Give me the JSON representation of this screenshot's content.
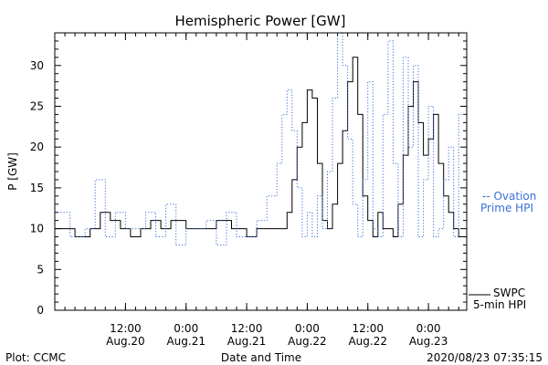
{
  "chart_data": {
    "type": "line",
    "title": "Hemispheric Power [GW]",
    "xlabel": "Date and Time",
    "ylabel": "P [GW]",
    "ylim": [
      0,
      34
    ],
    "yticks": [
      0,
      5,
      10,
      15,
      20,
      25,
      30
    ],
    "xlim": [
      "2020-08-19T22:00",
      "2020-08-23T07:35"
    ],
    "xticks": [
      {
        "t": "2020-08-20T12:00",
        "time": "12:00",
        "date": "Aug.20"
      },
      {
        "t": "2020-08-21T00:00",
        "time": "0:00",
        "date": "Aug.21"
      },
      {
        "t": "2020-08-21T12:00",
        "time": "12:00",
        "date": "Aug.21"
      },
      {
        "t": "2020-08-22T00:00",
        "time": "0:00",
        "date": "Aug.22"
      },
      {
        "t": "2020-08-22T12:00",
        "time": "12:00",
        "date": "Aug.22"
      },
      {
        "t": "2020-08-23T00:00",
        "time": "0:00",
        "date": "Aug.23"
      }
    ],
    "legend": {
      "ovation": [
        "-- Ovation",
        "Prime HPI"
      ],
      "swpc": [
        "SWPC",
        "5-min HPI"
      ]
    },
    "footer": {
      "left": "Plot: CCMC",
      "right": "2020/08/23 07:35:15"
    },
    "colors": {
      "swpc": "#000000",
      "ovation": "#3a6fd8"
    },
    "series": [
      {
        "name": "SWPC 5-min HPI",
        "x": [
          "2020-08-19T22:00",
          "2020-08-20T02:00",
          "2020-08-20T05:00",
          "2020-08-20T07:00",
          "2020-08-20T09:00",
          "2020-08-20T11:00",
          "2020-08-20T13:00",
          "2020-08-20T15:00",
          "2020-08-20T17:00",
          "2020-08-20T19:00",
          "2020-08-20T21:00",
          "2020-08-21T00:00",
          "2020-08-21T03:00",
          "2020-08-21T06:00",
          "2020-08-21T09:00",
          "2020-08-21T12:00",
          "2020-08-21T14:00",
          "2020-08-21T16:00",
          "2020-08-21T18:00",
          "2020-08-21T19:00",
          "2020-08-21T20:00",
          "2020-08-21T21:00",
          "2020-08-21T22:00",
          "2020-08-21T23:00",
          "2020-08-22T00:00",
          "2020-08-22T01:00",
          "2020-08-22T02:00",
          "2020-08-22T03:00",
          "2020-08-22T04:00",
          "2020-08-22T05:00",
          "2020-08-22T06:00",
          "2020-08-22T07:00",
          "2020-08-22T08:00",
          "2020-08-22T09:00",
          "2020-08-22T10:00",
          "2020-08-22T11:00",
          "2020-08-22T12:00",
          "2020-08-22T13:00",
          "2020-08-22T14:00",
          "2020-08-22T15:00",
          "2020-08-22T16:00",
          "2020-08-22T17:00",
          "2020-08-22T18:00",
          "2020-08-22T19:00",
          "2020-08-22T20:00",
          "2020-08-22T21:00",
          "2020-08-22T22:00",
          "2020-08-22T23:00",
          "2020-08-23T00:00",
          "2020-08-23T01:00",
          "2020-08-23T02:00",
          "2020-08-23T03:00",
          "2020-08-23T04:00",
          "2020-08-23T05:00",
          "2020-08-23T06:00",
          "2020-08-23T07:35"
        ],
        "values": [
          10,
          9,
          10,
          12,
          11,
          10,
          9,
          10,
          11,
          10,
          11,
          10,
          10,
          11,
          10,
          9,
          10,
          10,
          10,
          10,
          12,
          16,
          20,
          23,
          27,
          26,
          18,
          11,
          10,
          13,
          18,
          22,
          28,
          31,
          24,
          14,
          11,
          9,
          12,
          10,
          10,
          9,
          13,
          19,
          25,
          28,
          23,
          19,
          21,
          24,
          18,
          14,
          12,
          10,
          9,
          9
        ]
      },
      {
        "name": "Ovation Prime HPI",
        "x": [
          "2020-08-19T22:00",
          "2020-08-20T01:00",
          "2020-08-20T04:00",
          "2020-08-20T06:00",
          "2020-08-20T08:00",
          "2020-08-20T10:00",
          "2020-08-20T12:00",
          "2020-08-20T14:00",
          "2020-08-20T16:00",
          "2020-08-20T18:00",
          "2020-08-20T20:00",
          "2020-08-20T22:00",
          "2020-08-21T00:00",
          "2020-08-21T02:00",
          "2020-08-21T04:00",
          "2020-08-21T06:00",
          "2020-08-21T08:00",
          "2020-08-21T10:00",
          "2020-08-21T12:00",
          "2020-08-21T14:00",
          "2020-08-21T16:00",
          "2020-08-21T18:00",
          "2020-08-21T19:00",
          "2020-08-21T20:00",
          "2020-08-21T21:00",
          "2020-08-21T22:00",
          "2020-08-21T23:00",
          "2020-08-22T00:00",
          "2020-08-22T01:00",
          "2020-08-22T02:00",
          "2020-08-22T03:00",
          "2020-08-22T04:00",
          "2020-08-22T05:00",
          "2020-08-22T06:00",
          "2020-08-22T07:00",
          "2020-08-22T08:00",
          "2020-08-22T09:00",
          "2020-08-22T10:00",
          "2020-08-22T11:00",
          "2020-08-22T12:00",
          "2020-08-22T13:00",
          "2020-08-22T14:00",
          "2020-08-22T15:00",
          "2020-08-22T16:00",
          "2020-08-22T17:00",
          "2020-08-22T18:00",
          "2020-08-22T19:00",
          "2020-08-22T20:00",
          "2020-08-22T21:00",
          "2020-08-22T22:00",
          "2020-08-22T23:00",
          "2020-08-23T00:00",
          "2020-08-23T01:00",
          "2020-08-23T02:00",
          "2020-08-23T03:00",
          "2020-08-23T04:00",
          "2020-08-23T05:00",
          "2020-08-23T06:00",
          "2020-08-23T07:35"
        ],
        "values": [
          12,
          9,
          10,
          16,
          9,
          12,
          10,
          10,
          12,
          9,
          13,
          8,
          10,
          10,
          11,
          8,
          12,
          9,
          9,
          11,
          14,
          18,
          24,
          27,
          22,
          15,
          9,
          12,
          9,
          14,
          10,
          17,
          26,
          34,
          30,
          21,
          13,
          9,
          16,
          28,
          10,
          9,
          24,
          33,
          18,
          9,
          31,
          20,
          30,
          9,
          16,
          25,
          9,
          10,
          16,
          20,
          9,
          24,
          9
        ]
      }
    ]
  }
}
